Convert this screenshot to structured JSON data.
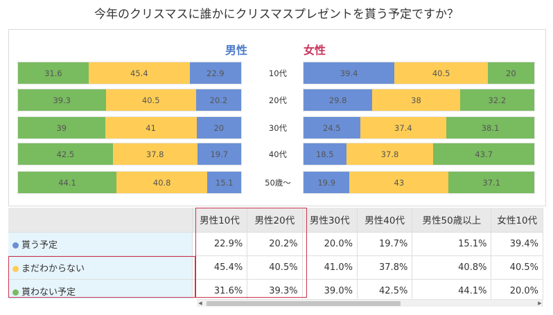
{
  "title": "今年のクリスマスに誰かにクリスマスプレゼントを貰う予定ですか？",
  "colors": {
    "blue": "#6a8fd6",
    "yellow": "#ffcd55",
    "green": "#79bb5f",
    "highlight": "#c8344c",
    "male": "#4a79c9",
    "female": "#c8345a"
  },
  "chart_data": {
    "type": "bar",
    "stacked": true,
    "orientation": "horizontal",
    "male_label": "男性",
    "female_label": "女性",
    "categories": [
      "10代",
      "20代",
      "30代",
      "40代",
      "50歳〜"
    ],
    "male": {
      "green": [
        31.6,
        39.3,
        39,
        42.5,
        44.1
      ],
      "yellow": [
        45.4,
        40.5,
        41,
        37.8,
        40.8
      ],
      "blue": [
        22.9,
        20.2,
        20,
        19.7,
        15.1
      ]
    },
    "female": {
      "blue": [
        39.4,
        29.8,
        24.5,
        18.5,
        19.9
      ],
      "yellow": [
        40.5,
        38,
        37.4,
        37.8,
        43
      ],
      "green": [
        20,
        32.2,
        38.1,
        43.7,
        37.1
      ]
    }
  },
  "table": {
    "columns": [
      "",
      "男性10代",
      "男性20代",
      "男性30代",
      "男性40代",
      "男性50歳以上",
      "女性10代"
    ],
    "rows": [
      {
        "label": "貰う予定",
        "dot": "blue",
        "values": [
          "22.9%",
          "20.2%",
          "20.0%",
          "19.7%",
          "15.1%",
          "39.4%"
        ]
      },
      {
        "label": "まだわからない",
        "dot": "yellow",
        "values": [
          "45.4%",
          "40.5%",
          "41.0%",
          "37.8%",
          "40.8%",
          "40.5%"
        ]
      },
      {
        "label": "貰わない予定",
        "dot": "green",
        "values": [
          "31.6%",
          "39.3%",
          "39.0%",
          "42.5%",
          "44.1%",
          "20.0%"
        ]
      }
    ]
  }
}
